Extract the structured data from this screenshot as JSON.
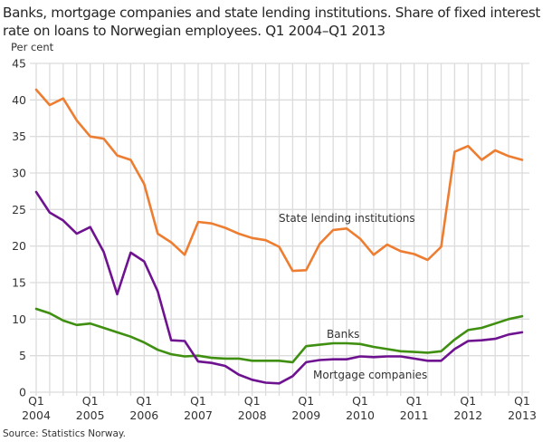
{
  "chart_data": {
    "type": "line",
    "title": "Banks, mortgage companies and state lending institutions. Share of fixed interest rate on loans to Norwegian employees. Q1 2004–Q1 2013",
    "ylabel": "Per cent",
    "xlabel": "",
    "ylim": [
      0,
      45
    ],
    "yticks": [
      0,
      5,
      10,
      15,
      20,
      25,
      30,
      35,
      40,
      45
    ],
    "grid": true,
    "x": [
      "Q1 2004",
      "Q2 2004",
      "Q3 2004",
      "Q4 2004",
      "Q1 2005",
      "Q2 2005",
      "Q3 2005",
      "Q4 2005",
      "Q1 2006",
      "Q2 2006",
      "Q3 2006",
      "Q4 2006",
      "Q1 2007",
      "Q2 2007",
      "Q3 2007",
      "Q4 2007",
      "Q1 2008",
      "Q2 2008",
      "Q3 2008",
      "Q4 2008",
      "Q1 2009",
      "Q2 2009",
      "Q3 2009",
      "Q4 2009",
      "Q1 2010",
      "Q2 2010",
      "Q3 2010",
      "Q4 2010",
      "Q1 2011",
      "Q2 2011",
      "Q3 2011",
      "Q4 2011",
      "Q1 2012",
      "Q2 2012",
      "Q3 2012",
      "Q4 2012",
      "Q1 2013"
    ],
    "xticks": [
      {
        "q": "Q1",
        "year": "2004",
        "index": 0
      },
      {
        "q": "Q1",
        "year": "2005",
        "index": 4
      },
      {
        "q": "Q1",
        "year": "2006",
        "index": 8
      },
      {
        "q": "Q1",
        "year": "2007",
        "index": 12
      },
      {
        "q": "Q1",
        "year": "2008",
        "index": 16
      },
      {
        "q": "Q1",
        "year": "2009",
        "index": 20
      },
      {
        "q": "Q1",
        "year": "2010",
        "index": 24
      },
      {
        "q": "Q1",
        "year": "2011",
        "index": 28
      },
      {
        "q": "Q1",
        "year": "2012",
        "index": 32
      },
      {
        "q": "Q1",
        "year": "2013",
        "index": 36
      }
    ],
    "series": [
      {
        "name": "State lending institutions",
        "color": "#ed7d31",
        "values": [
          41.4,
          39.3,
          40.2,
          37.2,
          35.0,
          34.7,
          32.4,
          31.8,
          28.5,
          21.7,
          20.5,
          18.8,
          23.3,
          23.1,
          22.5,
          21.7,
          21.1,
          20.8,
          19.9,
          16.6,
          16.7,
          20.3,
          22.2,
          22.4,
          21.0,
          18.8,
          20.2,
          19.3,
          18.9,
          18.1,
          19.9,
          32.9,
          33.7,
          31.8,
          33.1,
          32.3,
          31.8
        ]
      },
      {
        "name": "Banks",
        "color": "#3f8f10",
        "values": [
          11.4,
          10.8,
          9.8,
          9.2,
          9.4,
          8.8,
          8.2,
          7.6,
          6.8,
          5.8,
          5.2,
          4.9,
          5.0,
          4.7,
          4.6,
          4.6,
          4.3,
          4.3,
          4.3,
          4.1,
          6.3,
          6.5,
          6.7,
          6.7,
          6.6,
          6.2,
          5.9,
          5.6,
          5.5,
          5.4,
          5.6,
          7.2,
          8.5,
          8.8,
          9.4,
          10.0,
          10.4
        ]
      },
      {
        "name": "Mortgage companies",
        "color": "#6e1290",
        "values": [
          27.4,
          24.6,
          23.5,
          21.7,
          22.6,
          19.2,
          13.4,
          19.1,
          17.9,
          13.8,
          7.1,
          7.0,
          4.2,
          4.0,
          3.6,
          2.4,
          1.7,
          1.3,
          1.2,
          2.2,
          4.1,
          4.4,
          4.5,
          4.5,
          4.9,
          4.8,
          4.9,
          4.9,
          4.6,
          4.3,
          4.3,
          5.9,
          7.0,
          7.1,
          7.3,
          7.9,
          8.2
        ]
      }
    ],
    "annotations": [
      "State lending institutions",
      "Banks",
      "Mortgage companies"
    ]
  },
  "footer": {
    "source": "Source: Statistics Norway."
  }
}
